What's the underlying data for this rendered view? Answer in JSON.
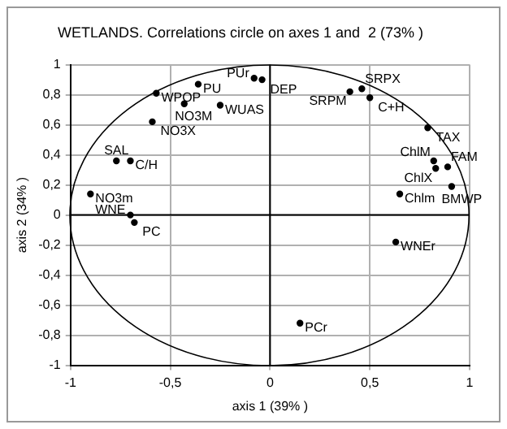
{
  "chart_data": {
    "type": "scatter",
    "title": "WETLANDS. Correlations circle on axes 1 and  2 (73% )",
    "xlabel": "axis 1 (39% )",
    "ylabel": "axis 2 (34% )",
    "xlim": [
      -1,
      1
    ],
    "ylim": [
      -1,
      1
    ],
    "xticks": [
      {
        "value": -1,
        "label": "-1"
      },
      {
        "value": -0.5,
        "label": "-0,5"
      },
      {
        "value": 0,
        "label": "0"
      },
      {
        "value": 0.5,
        "label": "0,5"
      },
      {
        "value": 1,
        "label": "1"
      }
    ],
    "yticks": [
      {
        "value": -1,
        "label": "-1"
      },
      {
        "value": -0.8,
        "label": "-0,8"
      },
      {
        "value": -0.6,
        "label": "-0,6"
      },
      {
        "value": -0.4,
        "label": "-0,4"
      },
      {
        "value": -0.2,
        "label": "-0,2"
      },
      {
        "value": 0,
        "label": "0"
      },
      {
        "value": 0.2,
        "label": "0,2"
      },
      {
        "value": 0.4,
        "label": "0,4"
      },
      {
        "value": 0.6,
        "label": "0,6"
      },
      {
        "value": 0.8,
        "label": "0,8"
      },
      {
        "value": 1,
        "label": "1"
      }
    ],
    "grid": true,
    "legend": false,
    "marker": "circle",
    "series": [
      {
        "name": "NO3m",
        "color": "#000000",
        "x": [
          -0.9
        ],
        "values": [
          0.14
        ]
      },
      {
        "name": "SAL",
        "color": "#000000",
        "x": [
          -0.77
        ],
        "values": [
          0.36
        ]
      },
      {
        "name": "C/H",
        "color": "#000000",
        "x": [
          -0.7
        ],
        "values": [
          0.36
        ]
      },
      {
        "name": "NO3X",
        "color": "#000000",
        "x": [
          -0.59
        ],
        "values": [
          0.62
        ]
      },
      {
        "name": "WPOP",
        "color": "#000000",
        "x": [
          -0.57
        ],
        "values": [
          0.81
        ]
      },
      {
        "name": "NO3M",
        "color": "#000000",
        "x": [
          -0.43
        ],
        "values": [
          0.74
        ]
      },
      {
        "name": "PU",
        "color": "#000000",
        "x": [
          -0.36
        ],
        "values": [
          0.87
        ]
      },
      {
        "name": "WUAS",
        "color": "#000000",
        "x": [
          -0.25
        ],
        "values": [
          0.73
        ]
      },
      {
        "name": "PUr",
        "color": "#000000",
        "x": [
          -0.08
        ],
        "values": [
          0.91
        ]
      },
      {
        "name": "DEP",
        "color": "#000000",
        "x": [
          -0.04
        ],
        "values": [
          0.9
        ]
      },
      {
        "name": "SRPM",
        "color": "#000000",
        "x": [
          0.4
        ],
        "values": [
          0.82
        ]
      },
      {
        "name": "SRPX",
        "color": "#000000",
        "x": [
          0.46
        ],
        "values": [
          0.84
        ]
      },
      {
        "name": "C+H",
        "color": "#000000",
        "x": [
          0.5
        ],
        "values": [
          0.78
        ]
      },
      {
        "name": "TAX",
        "color": "#000000",
        "x": [
          0.79
        ],
        "values": [
          0.58
        ]
      },
      {
        "name": "ChlM",
        "color": "#000000",
        "x": [
          0.82
        ],
        "values": [
          0.36
        ]
      },
      {
        "name": "ChlX",
        "color": "#000000",
        "x": [
          0.83
        ],
        "values": [
          0.31
        ]
      },
      {
        "name": "FAM",
        "color": "#000000",
        "x": [
          0.89
        ],
        "values": [
          0.32
        ]
      },
      {
        "name": "Chlm",
        "color": "#000000",
        "x": [
          0.65
        ],
        "values": [
          0.14
        ]
      },
      {
        "name": "BMWP",
        "color": "#000000",
        "x": [
          0.91
        ],
        "values": [
          0.19
        ]
      },
      {
        "name": "WNE",
        "color": "#000000",
        "x": [
          -0.7
        ],
        "values": [
          0.0
        ]
      },
      {
        "name": "PC",
        "color": "#000000",
        "x": [
          -0.68
        ],
        "values": [
          -0.05
        ]
      },
      {
        "name": "WNEr",
        "color": "#000000",
        "x": [
          0.63
        ],
        "values": [
          -0.18
        ]
      },
      {
        "name": "PCr",
        "color": "#000000",
        "x": [
          0.15
        ],
        "values": [
          -0.72
        ]
      }
    ]
  }
}
